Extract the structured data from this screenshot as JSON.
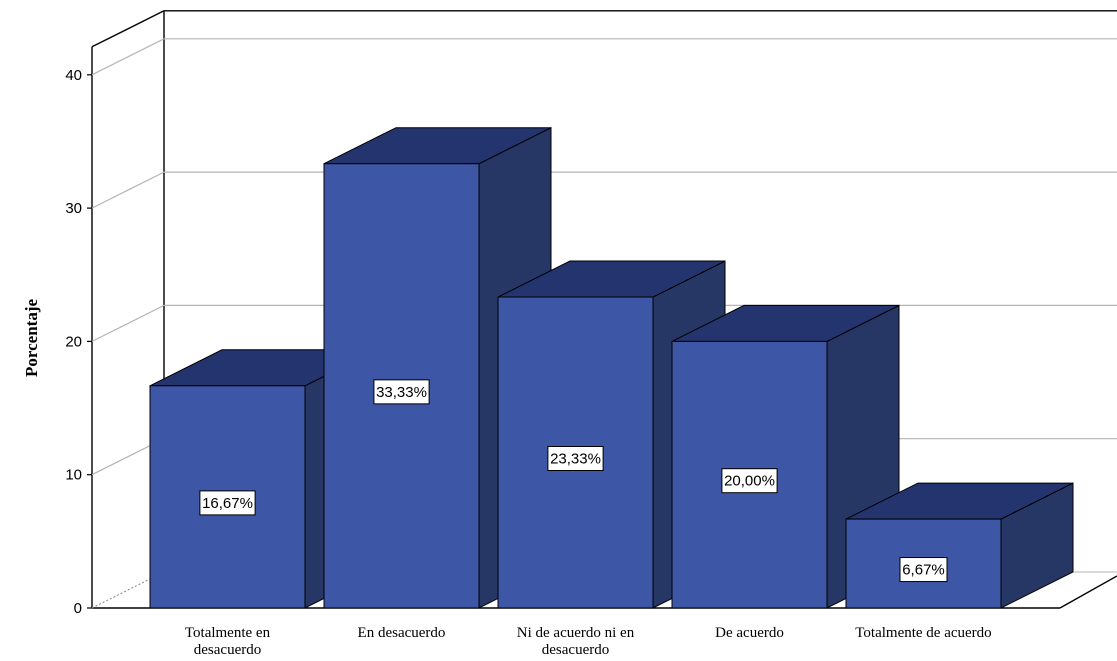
{
  "chart_data": {
    "type": "bar",
    "categories": [
      [
        "Totalmente en",
        "desacuerdo"
      ],
      [
        "En desacuerdo"
      ],
      [
        "Ni de acuerdo ni en",
        "desacuerdo"
      ],
      [
        "De acuerdo"
      ],
      [
        "Totalmente de acuerdo"
      ]
    ],
    "values": [
      16.67,
      33.33,
      23.33,
      20.0,
      6.67
    ],
    "data_labels": [
      "16,67%",
      "33,33%",
      "23,33%",
      "20,00%",
      "6,67%"
    ],
    "yticks": [
      0,
      10,
      20,
      30,
      40
    ],
    "ylim": [
      0,
      40
    ],
    "ylabel": "Porcentaje",
    "xlabel": "",
    "title": "",
    "grid": true,
    "three_d": true,
    "legend": "none",
    "colors": {
      "bar_front": "#3e56a6",
      "bar_top": "#24346e",
      "bar_side": "#263665",
      "bar_outline": "#000000",
      "grid": "#b4b4b4",
      "frame": "#000000"
    }
  }
}
